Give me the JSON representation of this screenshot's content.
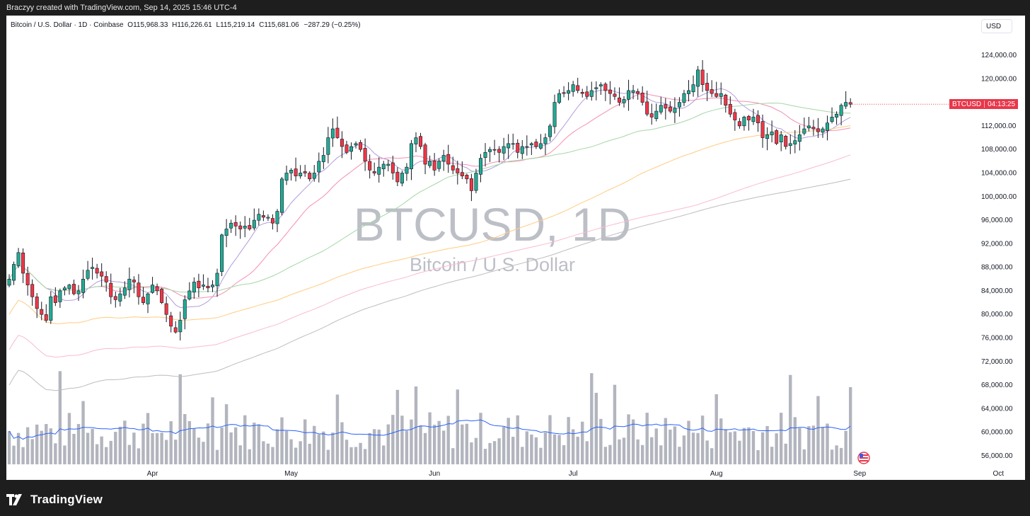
{
  "header": {
    "caption": "Braczyy created with TradingView.com, Sep 14, 2025 15:46 UTC-4"
  },
  "legend": {
    "symbol": "Bitcoin / U.S. Dollar · 1D · Coinbase",
    "open_label": "O",
    "open": "115,968.33",
    "high_label": "H",
    "high": "116,226.61",
    "low_label": "L",
    "low": "115,219.14",
    "close_label": "C",
    "close": "115,681.06",
    "change": "−287.29 (−0.25%)"
  },
  "currency": "USD",
  "watermark": {
    "ticker": "BTCUSD, 1D",
    "name": "Bitcoin / U.S. Dollar"
  },
  "price_tag": {
    "symbol": "BTCUSD",
    "countdown": "04:13:25",
    "color": "#e8374a"
  },
  "footer": {
    "brand": "TradingView"
  },
  "colors": {
    "up": "#22ab94",
    "down": "#f23645",
    "volume": "#b2b5be",
    "volume_ma": "#2962ff",
    "background": "#ffffff"
  },
  "chart_data": {
    "type": "candlestick",
    "title": "BTCUSD, 1D",
    "y_ticks": [
      "124,000.00",
      "120,000.00",
      "116,000.00",
      "112,000.00",
      "108,000.00",
      "104,000.00",
      "100,000.00",
      "96,000.00",
      "92,000.00",
      "88,000.00",
      "84,000.00",
      "80,000.00",
      "76,000.00",
      "72,000.00",
      "68,000.00",
      "64,000.00",
      "60,000.00",
      "56,000.00"
    ],
    "x_ticks": [
      "Apr",
      "May",
      "Jun",
      "Jul",
      "Aug",
      "Sep",
      "Oct"
    ],
    "ylim": [
      54000,
      127000
    ],
    "start_date": "2025-03-01",
    "closes": [
      86000,
      88500,
      90500,
      87000,
      85000,
      83000,
      81000,
      80000,
      79000,
      83000,
      82000,
      84000,
      84500,
      85000,
      83500,
      84000,
      86000,
      87500,
      88000,
      87000,
      86500,
      85500,
      83000,
      82500,
      83500,
      84500,
      86000,
      85500,
      83000,
      82000,
      83500,
      85000,
      84000,
      82000,
      80000,
      78000,
      77000,
      79000,
      82500,
      84000,
      85500,
      84500,
      85000,
      84500,
      85000,
      87000,
      93500,
      94500,
      95500,
      95000,
      94500,
      95000,
      94500,
      96000,
      97000,
      96500,
      96500,
      95500,
      97500,
      103000,
      104000,
      104500,
      103500,
      104000,
      104000,
      103000,
      104000,
      106000,
      107000,
      110000,
      111500,
      110000,
      108500,
      107500,
      108500,
      109000,
      108000,
      106000,
      104500,
      104000,
      105000,
      105500,
      105500,
      104000,
      102500,
      104000,
      105000,
      109000,
      110000,
      108500,
      105500,
      106000,
      104500,
      106000,
      107000,
      105500,
      104500,
      104000,
      103500,
      103000,
      101000,
      104000,
      106500,
      107500,
      108000,
      108000,
      107500,
      108500,
      109000,
      109000,
      107500,
      108500,
      108500,
      109000,
      108500,
      109000,
      110000,
      112000,
      116000,
      117500,
      117500,
      118000,
      119000,
      118000,
      117500,
      117000,
      118000,
      118500,
      119000,
      118000,
      117500,
      117000,
      116000,
      116500,
      118000,
      118000,
      117500,
      116000,
      114000,
      113500,
      114500,
      115500,
      115000,
      114500,
      115000,
      116000,
      117500,
      118000,
      119000,
      121500,
      119000,
      118000,
      117500,
      117000,
      117500,
      115500,
      114000,
      113000,
      112000,
      113500,
      113000,
      113500,
      112500,
      110000,
      110500,
      111000,
      109000,
      110500,
      108500,
      109000,
      109500,
      110500,
      111500,
      112000,
      111500,
      111000,
      111500,
      112500,
      113500,
      114000,
      115500,
      116000,
      115681.06
    ],
    "volume_ma_shape": "visible on chart (blue line over volume bars)",
    "moving_averages": [
      {
        "color": "#b39ddb"
      },
      {
        "color": "#f48fb1"
      },
      {
        "color": "#a5d6a7"
      },
      {
        "color": "#ffcc80"
      },
      {
        "color": "#f8bbd0"
      },
      {
        "color": "#bdbdbd"
      }
    ],
    "last_price": 115681.06,
    "grid": false
  }
}
